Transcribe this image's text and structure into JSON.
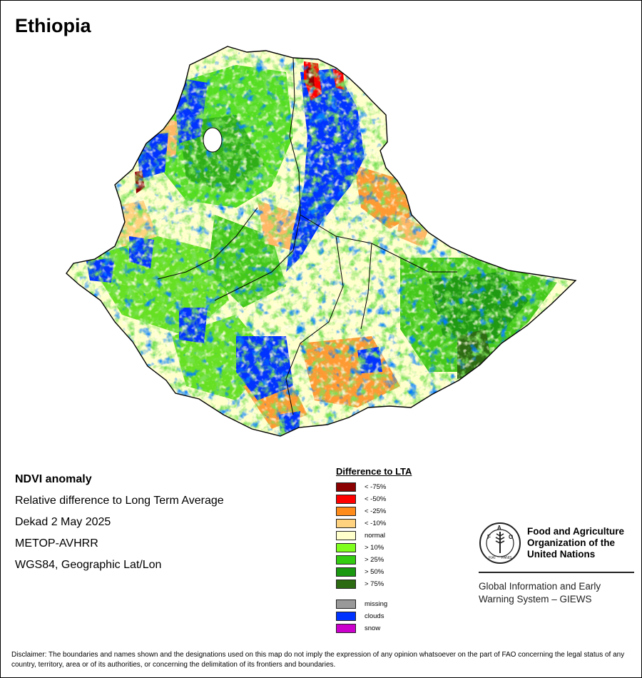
{
  "map": {
    "title": "Ethiopia",
    "country": "Ethiopia"
  },
  "info": {
    "heading": "NDVI anomaly",
    "lines": [
      "Relative difference to Long Term Average",
      "Dekad 2 May 2025",
      "METOP-AVHRR",
      "WGS84, Geographic Lat/Lon"
    ]
  },
  "legend": {
    "title": "Difference to LTA",
    "items": [
      {
        "label": "< -75%",
        "color": "#8b0000"
      },
      {
        "label": "< -50%",
        "color": "#ff0000"
      },
      {
        "label": "< -25%",
        "color": "#ff8c1a"
      },
      {
        "label": "< -10%",
        "color": "#ffd27f"
      },
      {
        "label": "normal",
        "color": "#ffffcc"
      },
      {
        "label": "> 10%",
        "color": "#7fff1e"
      },
      {
        "label": "> 25%",
        "color": "#33cc11"
      },
      {
        "label": "> 50%",
        "color": "#1a9910"
      },
      {
        "label": "> 75%",
        "color": "#2d6b12"
      }
    ],
    "extra_items": [
      {
        "label": "missing",
        "color": "#999999"
      },
      {
        "label": "clouds",
        "color": "#0033ff"
      },
      {
        "label": "snow",
        "color": "#cc00cc"
      }
    ]
  },
  "org": {
    "name_line1": "Food and Agriculture",
    "name_line2": "Organization of the",
    "name_line3": "United Nations",
    "logo_text": "FAO",
    "logo_motto": "FIAT PANIS",
    "giews_line1": "Global Information and Early",
    "giews_line2": "Warning System – GIEWS"
  },
  "disclaimer": "Disclaimer: The boundaries and names shown and the designations used on this map do not imply the expression of any opinion whatsoever on the part of FAO concerning the legal status of any country, territory, area or of its authorities, or concerning the delimitation of its frontiers and boundaries."
}
